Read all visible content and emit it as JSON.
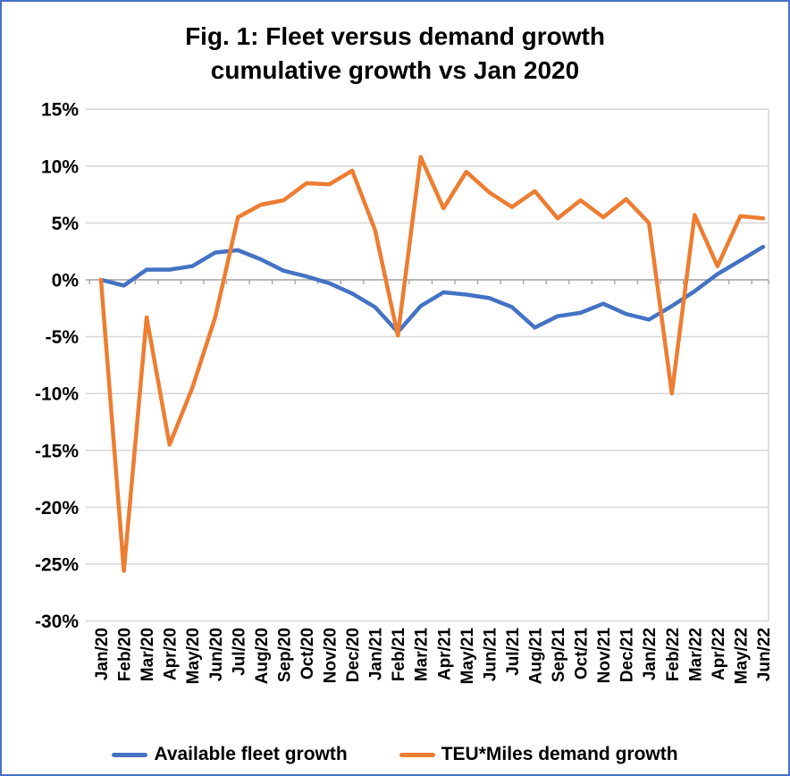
{
  "title": {
    "line1": "Fig. 1: Fleet versus demand growth",
    "line2": "cumulative growth vs Jan 2020"
  },
  "chart_data": {
    "type": "line",
    "title": "Fig. 1: Fleet versus demand growth",
    "subtitle": "cumulative growth vs Jan 2020",
    "categories": [
      "Jan/20",
      "Feb/20",
      "Mar/20",
      "Apr/20",
      "May/20",
      "Jun/20",
      "Jul/20",
      "Aug/20",
      "Sep/20",
      "Oct/20",
      "Nov/20",
      "Dec/20",
      "Jan/21",
      "Feb/21",
      "Mar/21",
      "Apr/21",
      "May/21",
      "Jun/21",
      "Jul/21",
      "Aug/21",
      "Sep/21",
      "Oct/21",
      "Nov/21",
      "Dec/21",
      "Jan/22",
      "Feb/22",
      "Mar/22",
      "Apr/22",
      "May/22",
      "Jun/22"
    ],
    "series": [
      {
        "name": "Available fleet growth",
        "color": "#4472C4",
        "values": [
          0,
          -0.5,
          0.9,
          0.9,
          1.2,
          2.4,
          2.6,
          1.8,
          0.8,
          0.3,
          -0.3,
          -1.2,
          -2.4,
          -4.6,
          -2.3,
          -1.1,
          -1.3,
          -1.6,
          -2.4,
          -4.2,
          -3.2,
          -2.9,
          -2.1,
          -3.0,
          -3.5,
          -2.3,
          -1.0,
          0.5,
          1.7,
          2.9
        ]
      },
      {
        "name": "TEU*Miles demand growth",
        "color": "#ED7D31",
        "values": [
          0,
          -25.6,
          -3.3,
          -14.5,
          -9.5,
          -3.3,
          5.5,
          6.6,
          7.0,
          8.5,
          8.4,
          9.6,
          4.4,
          -4.9,
          10.8,
          6.3,
          9.5,
          7.7,
          6.4,
          7.8,
          5.4,
          7.0,
          5.5,
          7.1,
          5.0,
          -10.0,
          5.7,
          1.2,
          5.6,
          5.4
        ]
      }
    ],
    "ylim": [
      -30,
      15
    ],
    "ytick_step": 5,
    "ytick_labels": [
      "15%",
      "10%",
      "5%",
      "0%",
      "-5%",
      "-10%",
      "-15%",
      "-20%",
      "-25%",
      "-30%"
    ],
    "xlabel": "",
    "ylabel": "",
    "grid": true,
    "legend_position": "bottom"
  },
  "colors": {
    "border": "#4472C4",
    "gridline": "#D9D9D9",
    "axis_line": "#A6A6A6",
    "text": "#000000"
  }
}
